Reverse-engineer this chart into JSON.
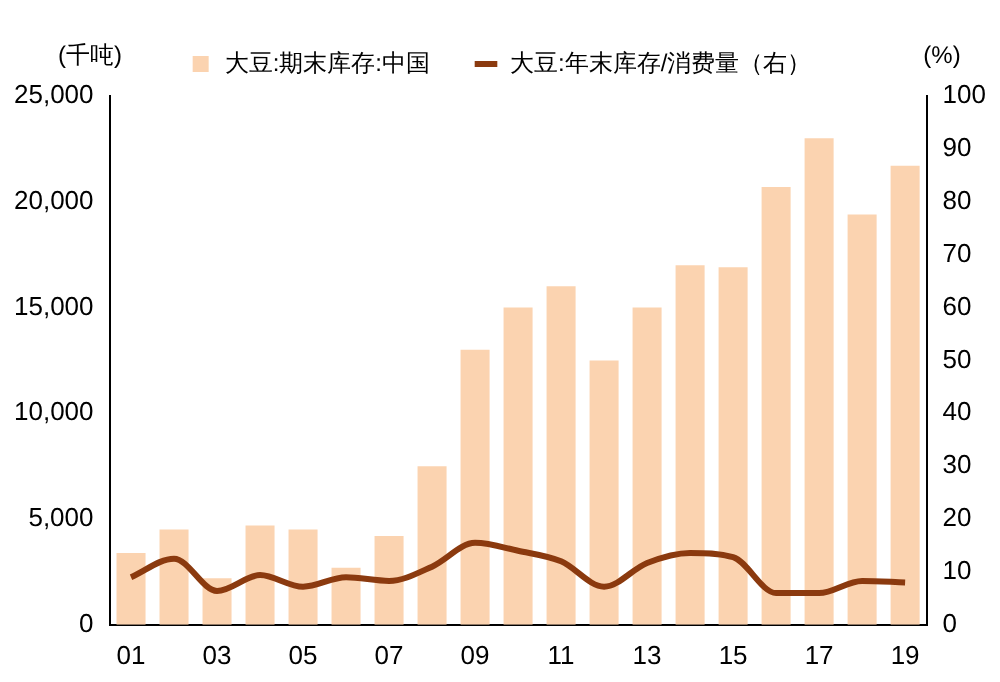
{
  "chart_data": {
    "type": "bar",
    "ylabel": "(千吨)",
    "y2label": "(%)",
    "categories": [
      "01",
      null,
      "03",
      null,
      "05",
      null,
      "07",
      null,
      "09",
      null,
      "11",
      null,
      "13",
      null,
      "15",
      null,
      "17",
      null,
      "19"
    ],
    "series": [
      {
        "name": "大豆:期末库存:中国",
        "color": "#fbd3b0",
        "values": [
          3400,
          4500,
          2200,
          4700,
          4500,
          2700,
          4200,
          7500,
          13000,
          15000,
          16000,
          12500,
          15000,
          17000,
          16900,
          20700,
          23000,
          19400,
          21700
        ]
      },
      {
        "name": "大豆:年末库存/消费量（右）",
        "type": "line",
        "axis": "y2",
        "color": "#8b3a0f",
        "values": [
          9,
          12.5,
          6.4,
          9.4,
          7.2,
          9,
          8.3,
          11,
          15.5,
          14,
          12,
          7.2,
          11.7,
          13.6,
          12.8,
          6,
          6,
          8.3,
          8
        ]
      }
    ],
    "ylim": [
      0,
      25000
    ],
    "yticks": [
      0,
      {
        "value": 5000,
        "label": "5,000"
      },
      {
        "value": 10000,
        "label": "10,000"
      },
      {
        "value": 15000,
        "label": "15,000"
      },
      {
        "value": 20000,
        "label": "20,000"
      },
      {
        "value": 25000,
        "label": "25,000"
      }
    ],
    "y2lim": [
      0,
      100
    ],
    "y2ticks": [
      0,
      10,
      20,
      30,
      40,
      50,
      60,
      70,
      80,
      90,
      100
    ],
    "grid": false,
    "legend": "top",
    "marker": "none",
    "line_style": "solid"
  }
}
